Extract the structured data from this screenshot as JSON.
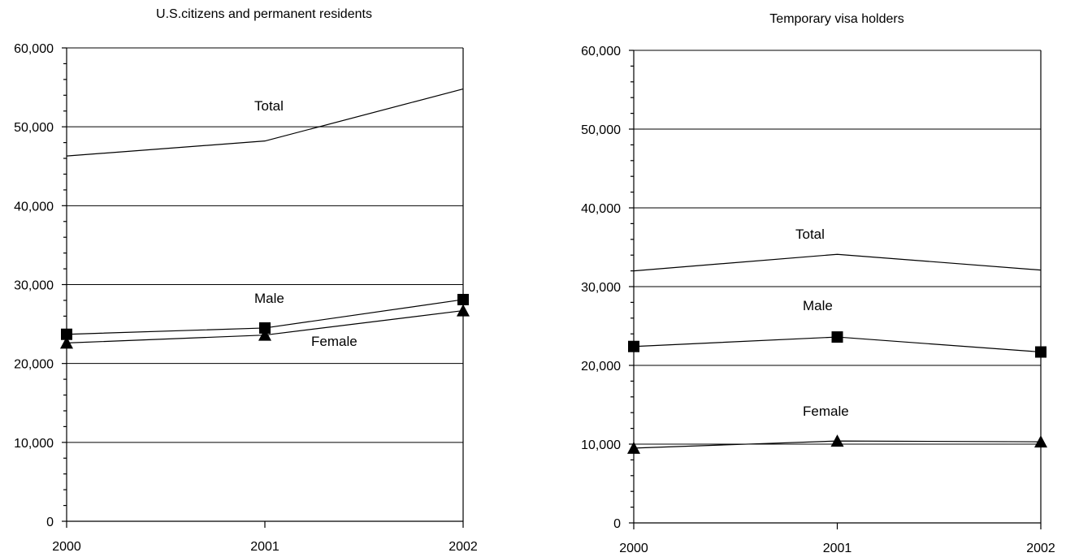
{
  "chart_data": [
    {
      "type": "line",
      "title": "U.S.citizens and permanent residents",
      "x": [
        "2000",
        "2001",
        "2002"
      ],
      "ylim": [
        0,
        60000
      ],
      "y_ticks": [
        "0",
        "10,000",
        "20,000",
        "30,000",
        "40,000",
        "50,000",
        "60,000"
      ],
      "grid": true,
      "series": [
        {
          "name": "Total",
          "marker": "none",
          "values": [
            46300,
            48200,
            54800
          ]
        },
        {
          "name": "Male",
          "marker": "square",
          "values": [
            23700,
            24500,
            28100
          ]
        },
        {
          "name": "Female",
          "marker": "triangle",
          "values": [
            22600,
            23600,
            26700
          ]
        }
      ]
    },
    {
      "type": "line",
      "title": "Temporary visa holders",
      "x": [
        "2000",
        "2001",
        "2002"
      ],
      "ylim": [
        0,
        60000
      ],
      "y_ticks": [
        "0",
        "10,000",
        "20,000",
        "30,000",
        "40,000",
        "50,000",
        "60,000"
      ],
      "grid": true,
      "series": [
        {
          "name": "Total",
          "marker": "none",
          "values": [
            32000,
            34100,
            32100
          ]
        },
        {
          "name": "Male",
          "marker": "square",
          "values": [
            22400,
            23600,
            21700
          ]
        },
        {
          "name": "Female",
          "marker": "triangle",
          "values": [
            9500,
            10400,
            10300
          ]
        }
      ]
    }
  ]
}
